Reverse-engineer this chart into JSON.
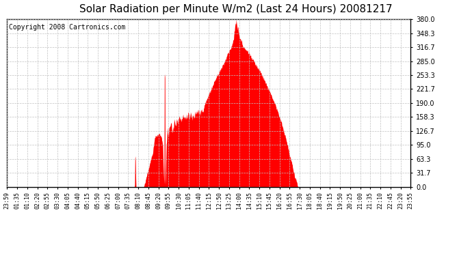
{
  "title": "Solar Radiation per Minute W/m2 (Last 24 Hours) 20081217",
  "copyright": "Copyright 2008 Cartronics.com",
  "fill_color": "#FF0000",
  "line_color": "#FF0000",
  "bg_color": "#FFFFFF",
  "dashed_line_color": "#FF0000",
  "grid_color": "#C0C0C0",
  "ylim": [
    0.0,
    380.0
  ],
  "yticks": [
    0.0,
    31.7,
    63.3,
    95.0,
    126.7,
    158.3,
    190.0,
    221.7,
    253.3,
    285.0,
    316.7,
    348.3,
    380.0
  ],
  "xtick_labels": [
    "23:59",
    "01:35",
    "01:10",
    "02:20",
    "02:55",
    "03:30",
    "04:05",
    "04:40",
    "05:15",
    "05:50",
    "06:25",
    "07:00",
    "07:35",
    "08:10",
    "08:45",
    "09:20",
    "09:55",
    "10:30",
    "11:05",
    "11:40",
    "12:15",
    "12:50",
    "13:25",
    "14:00",
    "14:35",
    "15:10",
    "15:45",
    "16:20",
    "16:55",
    "17:30",
    "18:05",
    "18:40",
    "19:15",
    "19:50",
    "20:25",
    "21:00",
    "21:35",
    "22:10",
    "22:45",
    "23:20",
    "23:55"
  ],
  "n_points": 1440,
  "title_fontsize": 11,
  "copyright_fontsize": 7,
  "tick_fontsize": 6,
  "ytick_fontsize": 7
}
